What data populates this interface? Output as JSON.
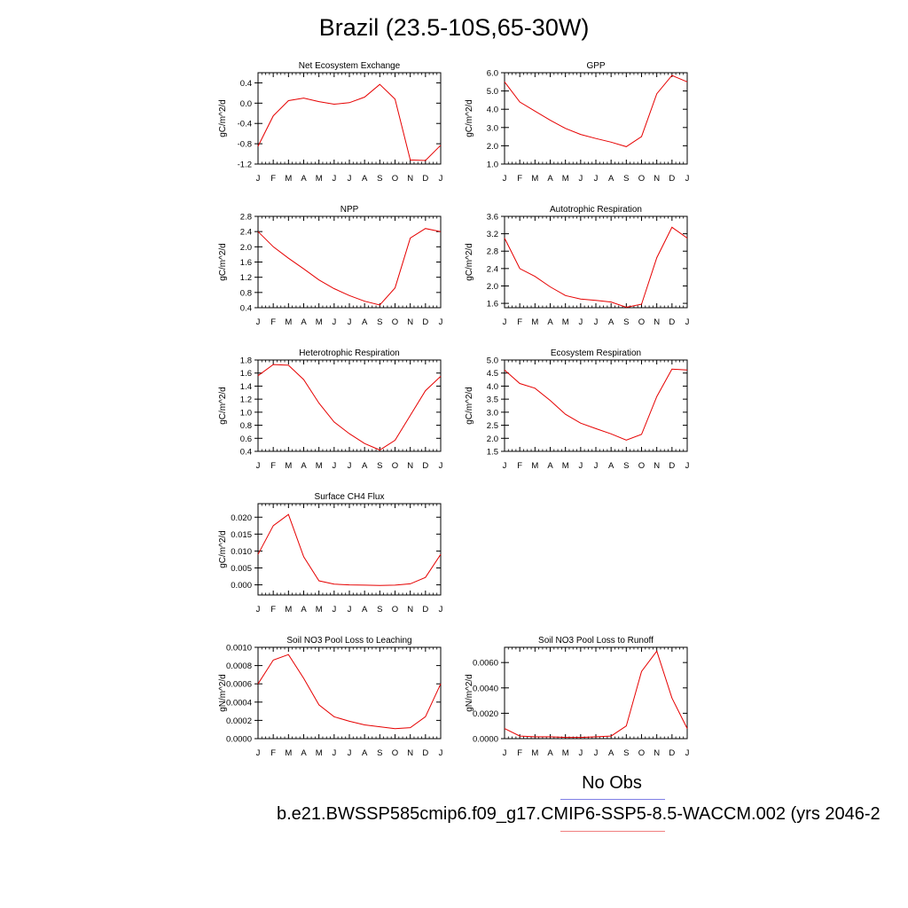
{
  "title": "Brazil (23.5-10S,65-30W)",
  "legend": {
    "obs_label": "No Obs",
    "case_label": "b.e21.BWSSP585cmip6.f09_g17.CMIP6-SSP5-8.5-WACCM.002 (yrs 2046-2",
    "obs_color": "#7f7fe6",
    "line_color": "#e60000"
  },
  "chart_data": [
    {
      "type": "line",
      "title": "Net Ecosystem Exchange",
      "ylabel": "gC/m^2/d",
      "categories": [
        "J",
        "F",
        "M",
        "A",
        "M",
        "J",
        "J",
        "A",
        "S",
        "O",
        "N",
        "D",
        "J"
      ],
      "ylim": [
        -1.2,
        0.6
      ],
      "yticks": [
        "-1.2",
        "-0.8",
        "-0.4",
        "0.0",
        "0.4"
      ],
      "values": [
        -0.85,
        -0.25,
        0.05,
        0.1,
        0.03,
        -0.02,
        0.01,
        0.12,
        0.37,
        0.08,
        -1.12,
        -1.13,
        -0.83
      ]
    },
    {
      "type": "line",
      "title": "GPP",
      "ylabel": "gC/m^2/d",
      "categories": [
        "J",
        "F",
        "M",
        "A",
        "M",
        "J",
        "J",
        "A",
        "S",
        "O",
        "N",
        "D",
        "J"
      ],
      "ylim": [
        1.0,
        6.0
      ],
      "yticks": [
        "1.0",
        "2.0",
        "3.0",
        "4.0",
        "5.0",
        "6.0"
      ],
      "values": [
        5.5,
        4.4,
        3.9,
        3.4,
        2.95,
        2.62,
        2.4,
        2.2,
        1.95,
        2.5,
        4.85,
        5.85,
        5.5
      ]
    },
    {
      "type": "line",
      "title": "NPP",
      "ylabel": "gC/m^2/d",
      "categories": [
        "J",
        "F",
        "M",
        "A",
        "M",
        "J",
        "J",
        "A",
        "S",
        "O",
        "N",
        "D",
        "J"
      ],
      "ylim": [
        0.4,
        2.8
      ],
      "yticks": [
        "0.4",
        "0.8",
        "1.2",
        "1.6",
        "2.0",
        "2.4",
        "2.8"
      ],
      "values": [
        2.4,
        2.0,
        1.7,
        1.42,
        1.13,
        0.9,
        0.72,
        0.57,
        0.47,
        0.92,
        2.23,
        2.48,
        2.4
      ]
    },
    {
      "type": "line",
      "title": "Autotrophic Respiration",
      "ylabel": "gC/m^2/d",
      "categories": [
        "J",
        "F",
        "M",
        "A",
        "M",
        "J",
        "J",
        "A",
        "S",
        "O",
        "N",
        "D",
        "J"
      ],
      "ylim": [
        1.5,
        3.6
      ],
      "yticks": [
        "1.6",
        "2.0",
        "2.4",
        "2.8",
        "3.2",
        "3.6"
      ],
      "values": [
        3.1,
        2.4,
        2.22,
        1.98,
        1.78,
        1.7,
        1.67,
        1.63,
        1.51,
        1.58,
        2.65,
        3.35,
        3.1
      ]
    },
    {
      "type": "line",
      "title": "Heterotrophic Respiration",
      "ylabel": "gC/m^2/d",
      "categories": [
        "J",
        "F",
        "M",
        "A",
        "M",
        "J",
        "J",
        "A",
        "S",
        "O",
        "N",
        "D",
        "J"
      ],
      "ylim": [
        0.4,
        1.8
      ],
      "yticks": [
        "0.4",
        "0.6",
        "0.8",
        "1.0",
        "1.2",
        "1.4",
        "1.6",
        "1.8"
      ],
      "values": [
        1.56,
        1.73,
        1.72,
        1.5,
        1.14,
        0.85,
        0.67,
        0.52,
        0.42,
        0.57,
        0.95,
        1.33,
        1.55
      ]
    },
    {
      "type": "line",
      "title": "Ecosystem Respiration",
      "ylabel": "gC/m^2/d",
      "categories": [
        "J",
        "F",
        "M",
        "A",
        "M",
        "J",
        "J",
        "A",
        "S",
        "O",
        "N",
        "D",
        "J"
      ],
      "ylim": [
        1.5,
        5.0
      ],
      "yticks": [
        "1.5",
        "2.0",
        "2.5",
        "3.0",
        "3.5",
        "4.0",
        "4.5",
        "5.0"
      ],
      "values": [
        4.62,
        4.1,
        3.92,
        3.45,
        2.92,
        2.58,
        2.37,
        2.17,
        1.93,
        2.15,
        3.6,
        4.65,
        4.62
      ]
    },
    {
      "type": "line",
      "title": "Surface CH4 Flux",
      "ylabel": "gC/m^2/d",
      "categories": [
        "J",
        "F",
        "M",
        "A",
        "M",
        "J",
        "J",
        "A",
        "S",
        "O",
        "N",
        "D",
        "J"
      ],
      "ylim": [
        -0.003,
        0.024
      ],
      "yticks": [
        "0.000",
        "0.005",
        "0.010",
        "0.015",
        "0.020"
      ],
      "values": [
        0.009,
        0.0175,
        0.0208,
        0.0083,
        0.0012,
        0.0002,
        0.0,
        -0.0001,
        -0.0002,
        -0.0001,
        0.0003,
        0.0022,
        0.009
      ]
    },
    {
      "type": "line",
      "title": "Soil NO3 Pool Loss to Leaching",
      "ylabel": "gN/m^2/d",
      "categories": [
        "J",
        "F",
        "M",
        "A",
        "M",
        "J",
        "J",
        "A",
        "S",
        "O",
        "N",
        "D",
        "J"
      ],
      "ylim": [
        0.0,
        0.001
      ],
      "yticks": [
        "0.0000",
        "0.0002",
        "0.0004",
        "0.0006",
        "0.0008",
        "0.0010"
      ],
      "values": [
        0.0006,
        0.00086,
        0.00092,
        0.00066,
        0.00037,
        0.00024,
        0.00019,
        0.00015,
        0.00013,
        0.00011,
        0.00012,
        0.00024,
        0.0006
      ]
    },
    {
      "type": "line",
      "title": "Soil NO3 Pool Loss to Runoff",
      "ylabel": "gN/m^2/d",
      "categories": [
        "J",
        "F",
        "M",
        "A",
        "M",
        "J",
        "J",
        "A",
        "S",
        "O",
        "N",
        "D",
        "J"
      ],
      "ylim": [
        0.0,
        0.0072
      ],
      "yticks": [
        "0.0000",
        "0.0020",
        "0.0040",
        "0.0060"
      ],
      "values": [
        0.0008,
        0.0002,
        0.00015,
        0.00015,
        0.0001,
        0.0001,
        0.00015,
        0.0002,
        0.001,
        0.0053,
        0.0069,
        0.0032,
        0.0008
      ]
    }
  ]
}
